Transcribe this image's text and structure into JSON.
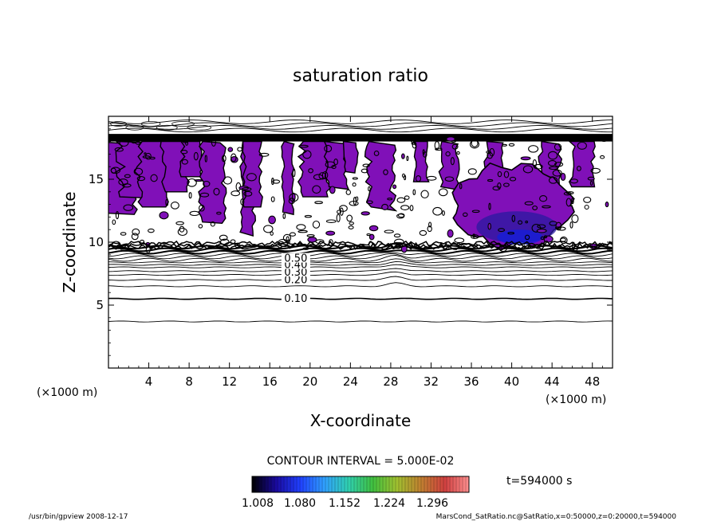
{
  "chart_data": {
    "type": "contour",
    "title": "saturation ratio",
    "xlabel": "X-coordinate",
    "ylabel": "Z-coordinate",
    "x_unit_left": "(×1000 m)",
    "x_unit_right": "(×1000 m)",
    "xlim": [
      0,
      50
    ],
    "ylim": [
      0,
      20
    ],
    "x_ticks": [
      4,
      8,
      12,
      16,
      20,
      24,
      28,
      32,
      36,
      40,
      44,
      48
    ],
    "y_ticks": [
      5,
      10,
      15
    ],
    "contour_interval_text": "CONTOUR INTERVAL = 5.000E-02",
    "contour_labels": [
      {
        "text": "0.10",
        "x": 17,
        "z": 5.5
      },
      {
        "text": "0.20",
        "x": 17,
        "z": 7.0
      },
      {
        "text": "0.30",
        "x": 17,
        "z": 7.6
      },
      {
        "text": "0.40",
        "x": 17,
        "z": 8.2
      },
      {
        "text": "0.50",
        "x": 17,
        "z": 8.7
      }
    ],
    "contour_levels_z": [
      3.7,
      5.5,
      6.5,
      7.0,
      7.4,
      7.7,
      8.0,
      8.2,
      8.4,
      8.6,
      8.8,
      9.0,
      9.2,
      9.4,
      9.6
    ],
    "colorbar": {
      "ticks": [
        "1.008",
        "1.080",
        "1.152",
        "1.224",
        "1.296"
      ],
      "colors": [
        "#000000",
        "#1a0aa0",
        "#2040ff",
        "#30a0ff",
        "#30d0b0",
        "#40c040",
        "#a0c030",
        "#c08030",
        "#d04040",
        "#ff9090"
      ]
    },
    "time_label": "t=594000 s",
    "footer_left": "/usr/bin/gpview   2008-12-17",
    "footer_right": "MarsCond_SatRatio.nc@SatRatio,x=0:50000,z=0:20000,t=594000",
    "fill_color": "#8010b8",
    "fill_dark": "#2a1aa0"
  }
}
